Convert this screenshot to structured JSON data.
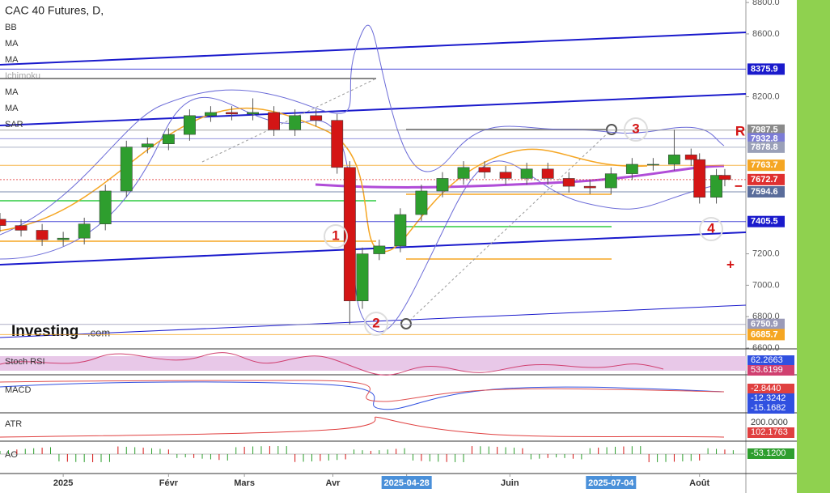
{
  "chart_data": {
    "type": "candlestick",
    "title": "CAC 40 Futures, D,",
    "x": [
      0,
      5,
      10,
      15,
      20,
      25,
      30,
      35,
      40,
      45,
      50,
      55,
      60,
      65,
      70,
      75,
      80,
      83,
      86,
      90,
      95,
      100,
      105,
      110,
      115,
      120,
      125,
      130,
      135,
      140,
      145,
      150,
      155,
      160,
      164,
      166,
      170,
      172
    ],
    "open": [
      7420,
      7380,
      7350,
      7290,
      7300,
      7390,
      7600,
      7880,
      7900,
      7960,
      8080,
      8100,
      8090,
      8100,
      7990,
      8080,
      8050,
      7750,
      6900,
      7200,
      7250,
      7450,
      7600,
      7680,
      7750,
      7720,
      7680,
      7740,
      7680,
      7630,
      7620,
      7710,
      7770,
      7770,
      7830,
      7800,
      7560,
      7700
    ],
    "high": [
      7460,
      7420,
      7390,
      7340,
      7430,
      7640,
      7920,
      7940,
      8000,
      8120,
      8140,
      8140,
      8190,
      8140,
      8120,
      8120,
      8090,
      7790,
      7240,
      7290,
      7490,
      7640,
      7720,
      7790,
      7790,
      7760,
      7780,
      7780,
      7720,
      7670,
      7750,
      7810,
      7810,
      7990,
      7870,
      7840,
      7740,
      7740
    ],
    "low": [
      7340,
      7310,
      7250,
      7250,
      7260,
      7350,
      7560,
      7840,
      7860,
      7920,
      8040,
      8050,
      8050,
      7950,
      7950,
      8010,
      7710,
      6750,
      6850,
      7160,
      7210,
      7410,
      7560,
      7640,
      7680,
      7640,
      7640,
      7640,
      7590,
      7580,
      7580,
      7670,
      7730,
      7730,
      7760,
      7520,
      7520,
      7630
    ],
    "close": [
      7380,
      7350,
      7290,
      7300,
      7390,
      7600,
      7880,
      7900,
      7960,
      8080,
      8100,
      8090,
      8100,
      7990,
      8080,
      8050,
      7750,
      6900,
      7200,
      7250,
      7450,
      7600,
      7680,
      7750,
      7720,
      7680,
      7740,
      7680,
      7630,
      7620,
      7710,
      7770,
      7770,
      7830,
      7800,
      7560,
      7700,
      7673
    ],
    "up_color": "#2e9e2e",
    "down_color": "#d41515",
    "xlim": [
      0,
      177
    ],
    "ylim": [
      6600,
      8816
    ],
    "yticks": [
      {
        "value": 8800,
        "label": "8800.0"
      },
      {
        "value": 8600,
        "label": "8600.0"
      },
      {
        "value": 8200,
        "label": "8200.0"
      },
      {
        "value": 7200,
        "label": "7200.0"
      },
      {
        "value": 7000,
        "label": "7000.0"
      },
      {
        "value": 6800,
        "label": "6800.0"
      },
      {
        "value": 6600,
        "label": "6600.0"
      }
    ],
    "xticks": [
      {
        "value": 15,
        "label": "2025"
      },
      {
        "value": 40,
        "label": "Févr"
      },
      {
        "value": 58,
        "label": "Mars"
      },
      {
        "value": 79,
        "label": "Avr"
      },
      {
        "value": 96.5,
        "label": "2025-04-28"
      },
      {
        "value": 121,
        "label": "Juin"
      },
      {
        "value": 145,
        "label": "2025-07-04"
      },
      {
        "value": 166,
        "label": "Août"
      }
    ],
    "price_lines": [
      {
        "value": 8375.9,
        "color": "#1a1acc"
      },
      {
        "value": 7987.5,
        "color": "#8a8a8a"
      },
      {
        "value": 7932.8,
        "color": "#7c7cd6"
      },
      {
        "value": 7878.8,
        "color": "#9aa0b8"
      },
      {
        "value": 7763.7,
        "color": "#f5a623"
      },
      {
        "value": 7672.7,
        "color": "#e03030"
      },
      {
        "value": 7594.6,
        "color": "#5a6d9b"
      },
      {
        "value": 7405.5,
        "color": "#1a1acc"
      },
      {
        "value": 6750.9,
        "color": "#9a9ab8"
      },
      {
        "value": 6685.7,
        "color": "#f5a623"
      }
    ],
    "indicators": [
      "BB",
      "MA",
      "MA",
      "Ichimoku",
      "MA",
      "MA",
      "SAR"
    ],
    "annotations": [
      "1",
      "2",
      "3",
      "4",
      "R",
      "−",
      "+"
    ],
    "logo": "Investing",
    "logo_suffix": ".com",
    "panes": [
      {
        "name": "Stoch RSI",
        "readings": [
          62.2663,
          53.6199
        ]
      },
      {
        "name": "MACD",
        "readings": [
          {
            "value": -2.844,
            "label": "-2.8440"
          },
          -12.3242,
          -15.1682
        ]
      },
      {
        "name": "ATR",
        "readings": [
          {
            "value": 200,
            "label": "200.0000"
          },
          102.1763
        ]
      },
      {
        "name": "AO",
        "readings": [
          {
            "value": -53.12,
            "label": "-53.1200"
          }
        ]
      }
    ]
  }
}
